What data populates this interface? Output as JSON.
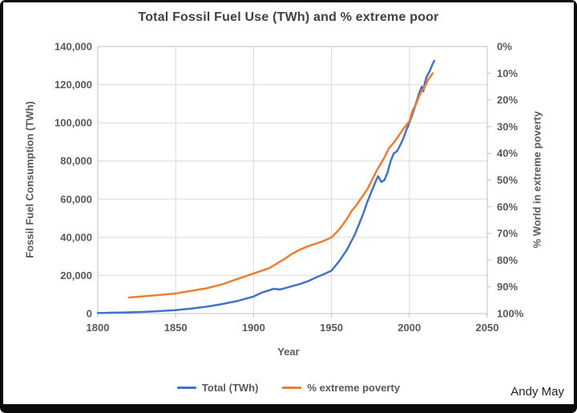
{
  "credit": "Andy May",
  "chart_data": {
    "type": "line",
    "title": "Total Fossil Fuel Use (TWh) and % extreme poor",
    "xlabel": "Year",
    "ylabel_left": "Fossil Fuel Consumption (TWh)",
    "ylabel_right": "% World in extreme poverty",
    "grid": true,
    "legend_position": "bottom",
    "x_axis": {
      "min": 1800,
      "max": 2050,
      "tick_values": [
        1800,
        1850,
        1900,
        1950,
        2000,
        2050
      ],
      "tick_labels": [
        "1800",
        "1850",
        "1900",
        "1950",
        "2000",
        "2050"
      ]
    },
    "left_axis": {
      "min": 0,
      "max": 140000,
      "tick_values": [
        0,
        20000,
        40000,
        60000,
        80000,
        100000,
        120000,
        140000
      ],
      "tick_labels": [
        "0",
        "20,000",
        "40,000",
        "60,000",
        "80,000",
        "100,000",
        "120,000",
        "140,000"
      ]
    },
    "right_axis": {
      "min": 0,
      "max": 100,
      "inverted": true,
      "tick_values": [
        0,
        10,
        20,
        30,
        40,
        50,
        60,
        70,
        80,
        90,
        100
      ],
      "tick_labels": [
        "0%",
        "10%",
        "20%",
        "30%",
        "40%",
        "50%",
        "60%",
        "70%",
        "80%",
        "90%",
        "100%"
      ]
    },
    "colors": {
      "grid": "#d9d9d9",
      "border": "#bfbfbf",
      "tick": "#bfbfbf",
      "text": "#595959",
      "title": "#404040"
    },
    "series": [
      {
        "name": "Total (TWh)",
        "axis": "left",
        "color": "#4472C4",
        "points": [
          [
            1800,
            300
          ],
          [
            1810,
            450
          ],
          [
            1820,
            650
          ],
          [
            1830,
            900
          ],
          [
            1840,
            1300
          ],
          [
            1850,
            1800
          ],
          [
            1860,
            2600
          ],
          [
            1870,
            3600
          ],
          [
            1880,
            5000
          ],
          [
            1890,
            6700
          ],
          [
            1900,
            8900
          ],
          [
            1905,
            10900
          ],
          [
            1910,
            12200
          ],
          [
            1913,
            13000
          ],
          [
            1917,
            12600
          ],
          [
            1920,
            13300
          ],
          [
            1925,
            14400
          ],
          [
            1930,
            15500
          ],
          [
            1935,
            17000
          ],
          [
            1940,
            18900
          ],
          [
            1945,
            20600
          ],
          [
            1950,
            22500
          ],
          [
            1955,
            27500
          ],
          [
            1960,
            33500
          ],
          [
            1965,
            41500
          ],
          [
            1970,
            51500
          ],
          [
            1973,
            58500
          ],
          [
            1976,
            64500
          ],
          [
            1979,
            70500
          ],
          [
            1980,
            72000
          ],
          [
            1982,
            69000
          ],
          [
            1984,
            70000
          ],
          [
            1986,
            74000
          ],
          [
            1988,
            80000
          ],
          [
            1990,
            84000
          ],
          [
            1992,
            85000
          ],
          [
            1994,
            88000
          ],
          [
            1996,
            91500
          ],
          [
            1998,
            96000
          ],
          [
            2000,
            100000
          ],
          [
            2002,
            104500
          ],
          [
            2004,
            109500
          ],
          [
            2006,
            115000
          ],
          [
            2008,
            119000
          ],
          [
            2009,
            116500
          ],
          [
            2010,
            121000
          ],
          [
            2011,
            124000
          ],
          [
            2013,
            127000
          ],
          [
            2015,
            131000
          ],
          [
            2016,
            132500
          ]
        ]
      },
      {
        "name": "% extreme poverty",
        "axis": "right",
        "color": "#ED7D31",
        "points": [
          [
            1820,
            94
          ],
          [
            1830,
            93.5
          ],
          [
            1840,
            93
          ],
          [
            1850,
            92.5
          ],
          [
            1860,
            91.5
          ],
          [
            1870,
            90.5
          ],
          [
            1880,
            89
          ],
          [
            1890,
            87
          ],
          [
            1900,
            85
          ],
          [
            1910,
            83
          ],
          [
            1920,
            79.5
          ],
          [
            1925,
            77.5
          ],
          [
            1930,
            76
          ],
          [
            1935,
            74.8
          ],
          [
            1940,
            73.8
          ],
          [
            1945,
            72.8
          ],
          [
            1950,
            71.5
          ],
          [
            1955,
            68.5
          ],
          [
            1960,
            64.5
          ],
          [
            1963,
            61.5
          ],
          [
            1966,
            59.5
          ],
          [
            1970,
            56
          ],
          [
            1973,
            53.5
          ],
          [
            1976,
            50
          ],
          [
            1979,
            46.5
          ],
          [
            1981,
            44.5
          ],
          [
            1984,
            41.5
          ],
          [
            1987,
            38
          ],
          [
            1990,
            36
          ],
          [
            1993,
            33.5
          ],
          [
            1996,
            31
          ],
          [
            1998,
            29.5
          ],
          [
            2000,
            28
          ],
          [
            2002,
            24
          ],
          [
            2004,
            22
          ],
          [
            2006,
            19
          ],
          [
            2008,
            16.5
          ],
          [
            2009,
            16
          ],
          [
            2010,
            15
          ],
          [
            2012,
            12.5
          ],
          [
            2015,
            10
          ]
        ]
      }
    ]
  }
}
